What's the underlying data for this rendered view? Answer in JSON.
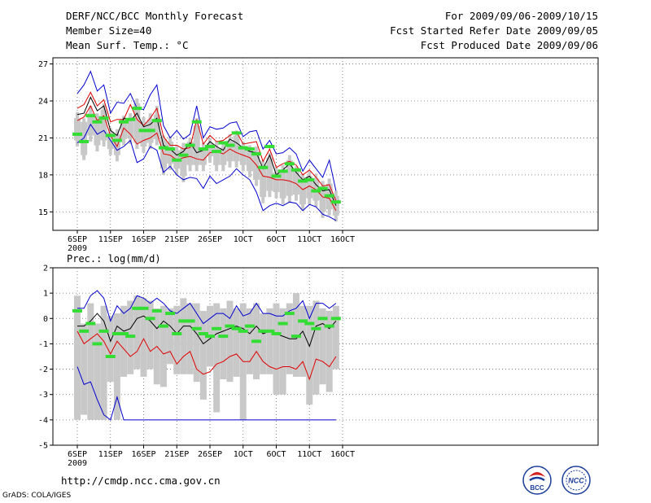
{
  "header": {
    "title": "DERF/NCC/BCC Monthly Forecast",
    "member": "Member Size=40",
    "variable": "Mean Surf. Temp.: °C",
    "period": "For 2009/09/06-2009/10/15",
    "started": "Fcst Started Refer Date 2009/09/05",
    "produced": "Fcst Produced Date 2009/09/06"
  },
  "footer": {
    "url": "http://cmdp.ncc.cma.gov.cn",
    "grads": "GrADS: COLA/IGES",
    "logo_left": "BCC",
    "logo_right": "NCC"
  },
  "colors": {
    "grid": "#666666",
    "box": "#c8c8c8",
    "mean": "#000000",
    "spread": "#e00000",
    "extreme": "#0000d0",
    "median": "#33dd33"
  },
  "chart_data": [
    {
      "type": "box-plume",
      "title": "Mean Surf. Temp.: °C",
      "xlabel": "",
      "ylabel": "",
      "ylim": [
        13.5,
        27.5
      ],
      "yticks": [
        15,
        18,
        21,
        24,
        27
      ],
      "xticks": [
        "6SEP",
        "11SEP",
        "16SEP",
        "21SEP",
        "26SEP",
        "1OCT",
        "6OCT",
        "11OCT",
        "16OCT"
      ],
      "xtick_years": [
        "2009",
        "",
        "",
        "",
        "",
        "",
        "",
        "",
        ""
      ],
      "days": 40,
      "max": [
        24.6,
        25.3,
        26.4,
        24.8,
        25.3,
        23.0,
        23.9,
        23.8,
        24.6,
        23.4,
        23.3,
        24.5,
        25.3,
        22.0,
        21.0,
        21.6,
        20.9,
        21.3,
        23.6,
        21.0,
        21.9,
        21.7,
        21.8,
        22.2,
        22.3,
        21.1,
        21.5,
        21.6,
        20.1,
        20.8,
        19.7,
        19.8,
        20.2,
        19.7,
        18.3,
        19.2,
        18.5,
        17.8,
        19.2,
        16.7
      ],
      "upper": [
        23.4,
        23.7,
        24.7,
        23.6,
        24.1,
        22.3,
        22.5,
        22.5,
        23.7,
        22.5,
        22.0,
        22.6,
        23.4,
        21.1,
        20.4,
        20.4,
        20.1,
        20.2,
        22.5,
        20.5,
        21.2,
        20.7,
        20.8,
        21.2,
        21.5,
        20.5,
        20.6,
        20.7,
        19.1,
        20.1,
        18.6,
        18.9,
        19.1,
        18.8,
        18.0,
        18.4,
        17.8,
        17.1,
        17.2,
        15.9
      ],
      "mean": [
        22.9,
        23.0,
        24.3,
        23.2,
        23.6,
        21.6,
        21.2,
        22.6,
        22.4,
        23.0,
        21.9,
        22.1,
        22.6,
        20.4,
        20.1,
        19.6,
        19.9,
        20.6,
        19.8,
        20.0,
        20.7,
        20.3,
        20.0,
        20.9,
        20.6,
        20.2,
        19.9,
        19.8,
        18.5,
        19.6,
        18.0,
        18.4,
        18.9,
        18.2,
        17.6,
        17.9,
        17.2,
        16.7,
        16.8,
        15.5
      ],
      "lower": [
        22.4,
        22.7,
        23.6,
        22.4,
        22.8,
        21.2,
        20.3,
        21.8,
        21.3,
        20.5,
        20.8,
        21.0,
        21.4,
        19.7,
        19.6,
        19.2,
        19.4,
        19.5,
        19.3,
        19.2,
        19.8,
        19.9,
        19.7,
        20.1,
        19.8,
        19.6,
        19.4,
        18.8,
        17.9,
        17.8,
        17.6,
        17.6,
        17.5,
        17.3,
        16.8,
        17.1,
        16.8,
        16.2,
        16.1,
        15.1
      ],
      "min": [
        20.6,
        21.0,
        22.1,
        21.3,
        21.6,
        20.8,
        20.0,
        20.3,
        20.8,
        19.0,
        19.3,
        20.3,
        20.0,
        18.2,
        18.7,
        18.0,
        17.6,
        17.8,
        17.7,
        16.9,
        17.9,
        17.3,
        17.6,
        17.9,
        18.5,
        18.0,
        17.6,
        16.6,
        15.1,
        15.5,
        15.7,
        15.5,
        15.8,
        15.7,
        15.1,
        15.6,
        15.4,
        14.8,
        14.6,
        14.3
      ],
      "box_high": [
        22.6,
        22.3,
        23.0,
        22.8,
        23.3,
        21.5,
        21.3,
        22.5,
        22.6,
        23.8,
        22.3,
        22.5,
        22.9,
        20.9,
        20.7,
        20.0,
        20.2,
        20.7,
        22.0,
        20.2,
        20.6,
        20.2,
        20.2,
        20.8,
        21.2,
        20.3,
        20.0,
        19.9,
        18.8,
        19.4,
        18.2,
        18.4,
        19.2,
        18.4,
        17.8,
        17.9,
        17.7,
        17.1,
        17.3,
        16.3
      ],
      "box_low": [
        20.8,
        19.6,
        21.2,
        20.4,
        20.8,
        20.1,
        19.6,
        20.9,
        21.0,
        20.6,
        20.3,
        20.6,
        20.9,
        18.5,
        18.9,
        18.5,
        17.9,
        18.8,
        18.8,
        18.8,
        19.5,
        18.8,
        18.8,
        19.1,
        19.1,
        18.8,
        18.3,
        17.6,
        16.2,
        16.7,
        16.6,
        16.1,
        16.3,
        16.4,
        15.6,
        16.1,
        15.9,
        15.0,
        15.2,
        14.7
      ],
      "whisker_high": [
        23.1,
        22.6,
        23.6,
        23.0,
        23.8,
        21.8,
        21.7,
        22.8,
        23.0,
        24.2,
        22.7,
        23.0,
        23.6,
        21.2,
        21.1,
        20.4,
        20.6,
        21.0,
        22.6,
        20.6,
        21.0,
        20.7,
        20.6,
        21.3,
        21.6,
        20.7,
        20.4,
        20.3,
        19.2,
        19.8,
        18.6,
        18.8,
        19.6,
        18.7,
        18.1,
        18.3,
        18.1,
        17.5,
        17.7,
        16.7
      ],
      "whisker_low": [
        20.3,
        19.2,
        20.7,
        19.9,
        20.3,
        19.6,
        19.1,
        20.4,
        20.5,
        20.1,
        19.8,
        20.1,
        20.4,
        18.0,
        18.4,
        18.0,
        17.4,
        18.3,
        18.3,
        18.3,
        19.0,
        18.3,
        18.3,
        18.6,
        18.6,
        18.3,
        17.8,
        17.1,
        15.7,
        16.2,
        16.1,
        15.6,
        15.8,
        15.9,
        15.1,
        15.6,
        15.4,
        14.5,
        14.7,
        14.2
      ],
      "median": [
        21.3,
        20.7,
        22.8,
        22.3,
        22.6,
        21.2,
        20.8,
        22.3,
        22.5,
        23.4,
        21.6,
        21.6,
        22.4,
        20.2,
        20.1,
        19.2,
        19.6,
        20.4,
        22.3,
        20.1,
        20.3,
        19.9,
        20.6,
        20.4,
        21.4,
        20.2,
        20.1,
        19.7,
        18.6,
        20.3,
        17.9,
        18.3,
        18.9,
        18.4,
        17.5,
        17.6,
        16.7,
        16.9,
        16.3,
        15.8
      ]
    },
    {
      "type": "box-plume",
      "title": "Prec.: log(mm/d)",
      "xlabel": "",
      "ylabel": "",
      "ylim": [
        -5,
        2
      ],
      "yticks": [
        -5,
        -4,
        -3,
        -2,
        -1,
        0,
        1,
        2
      ],
      "xticks": [
        "6SEP",
        "11SEP",
        "16SEP",
        "21SEP",
        "26SEP",
        "1OCT",
        "6OCT",
        "11OCT",
        "16OCT"
      ],
      "xtick_years": [
        "2009",
        "",
        "",
        "",
        "",
        "",
        "",
        "",
        ""
      ],
      "days": 40,
      "max": [
        0.4,
        0.4,
        0.9,
        1.1,
        0.8,
        -0.1,
        0.5,
        0.2,
        0.4,
        0.9,
        0.8,
        0.6,
        0.8,
        0.6,
        0.3,
        0.2,
        0.4,
        0.6,
        0.2,
        -0.2,
        0.0,
        0.2,
        0.2,
        0.0,
        0.5,
        0.1,
        0.2,
        0.6,
        0.2,
        0.2,
        0.1,
        0.1,
        0.3,
        0.4,
        0.7,
        0.0,
        0.6,
        0.6,
        0.4,
        0.6
      ],
      "mean": [
        -0.3,
        -0.3,
        -0.1,
        0.2,
        -0.1,
        -0.9,
        -0.3,
        -0.5,
        -0.4,
        0.0,
        0.1,
        -0.1,
        -0.4,
        -0.1,
        -0.3,
        -0.6,
        -0.3,
        -0.3,
        -0.6,
        -1.0,
        -0.8,
        -0.6,
        -0.5,
        -0.4,
        -0.3,
        -0.4,
        -0.6,
        -0.3,
        -0.6,
        -0.5,
        -0.6,
        -0.7,
        -0.8,
        -0.8,
        -0.5,
        -1.1,
        -0.3,
        -0.2,
        -0.4,
        -0.1
      ],
      "lower": [
        -0.5,
        -1.0,
        -0.8,
        -0.6,
        -0.9,
        -1.4,
        -0.9,
        -1.2,
        -1.5,
        -1.3,
        -0.8,
        -1.3,
        -1.1,
        -1.4,
        -1.3,
        -1.8,
        -1.5,
        -1.3,
        -2.0,
        -2.2,
        -2.1,
        -1.8,
        -1.7,
        -1.5,
        -1.4,
        -1.7,
        -1.7,
        -1.3,
        -1.7,
        -1.9,
        -2.0,
        -1.9,
        -1.9,
        -2.0,
        -1.7,
        -2.4,
        -1.6,
        -1.7,
        -1.9,
        -1.5
      ],
      "min": [
        -1.9,
        -2.6,
        -2.5,
        -3.2,
        -3.8,
        -4.0,
        -3.1,
        -4.0,
        -4.0,
        -4.0,
        -4.0,
        -4.0,
        -4.0,
        -4.0,
        -4.0,
        -4.0,
        -4.0,
        -4.0,
        -4.0,
        -4.0,
        -4.0,
        -4.0,
        -4.0,
        -4.0,
        -4.0,
        -4.0,
        -4.0,
        -4.0,
        -4.0,
        -4.0,
        -4.0,
        -4.0,
        -4.0,
        -4.0,
        -4.0,
        -4.0,
        -4.0,
        -4.0,
        -4.0,
        -4.0
      ],
      "box_high": [
        0.9,
        -0.2,
        0.6,
        -0.2,
        0.5,
        0.1,
        0.2,
        0.5,
        0.7,
        0.9,
        0.8,
        0.7,
        0.4,
        0.5,
        0.4,
        0.5,
        0.8,
        0.6,
        0.6,
        0.3,
        0.5,
        0.6,
        0.4,
        0.7,
        0.4,
        0.6,
        0.4,
        0.6,
        0.2,
        0.4,
        0.6,
        0.4,
        0.6,
        1.0,
        0.5,
        0.5,
        0.7,
        0.4,
        0.3,
        0.5
      ],
      "box_low": [
        -4.0,
        -3.8,
        -4.0,
        -4.0,
        -4.0,
        -2.5,
        -4.0,
        -2.3,
        -2.2,
        -2.0,
        -2.3,
        -2.0,
        -2.6,
        -2.7,
        -1.8,
        -2.2,
        -2.2,
        -2.2,
        -2.5,
        -3.2,
        -1.9,
        -3.7,
        -2.4,
        -2.5,
        -2.3,
        -4.0,
        -2.2,
        -2.4,
        -2.2,
        -2.2,
        -3.0,
        -3.0,
        -2.2,
        -2.3,
        -2.3,
        -3.4,
        -3.0,
        -2.6,
        -2.9,
        -2.0
      ],
      "median": [
        0.3,
        -0.5,
        -0.2,
        -1.0,
        -0.5,
        -1.5,
        -0.6,
        -0.6,
        -0.7,
        0.4,
        0.4,
        0.0,
        0.3,
        -0.3,
        0.2,
        -0.6,
        -0.1,
        -0.1,
        -0.4,
        -0.6,
        -0.7,
        -0.4,
        -0.7,
        -0.3,
        -0.4,
        -0.5,
        -0.3,
        -0.9,
        -0.5,
        -0.5,
        -0.6,
        -0.2,
        0.2,
        -0.7,
        -0.1,
        -0.2,
        -0.4,
        0.0,
        -0.3,
        0.0
      ]
    }
  ]
}
